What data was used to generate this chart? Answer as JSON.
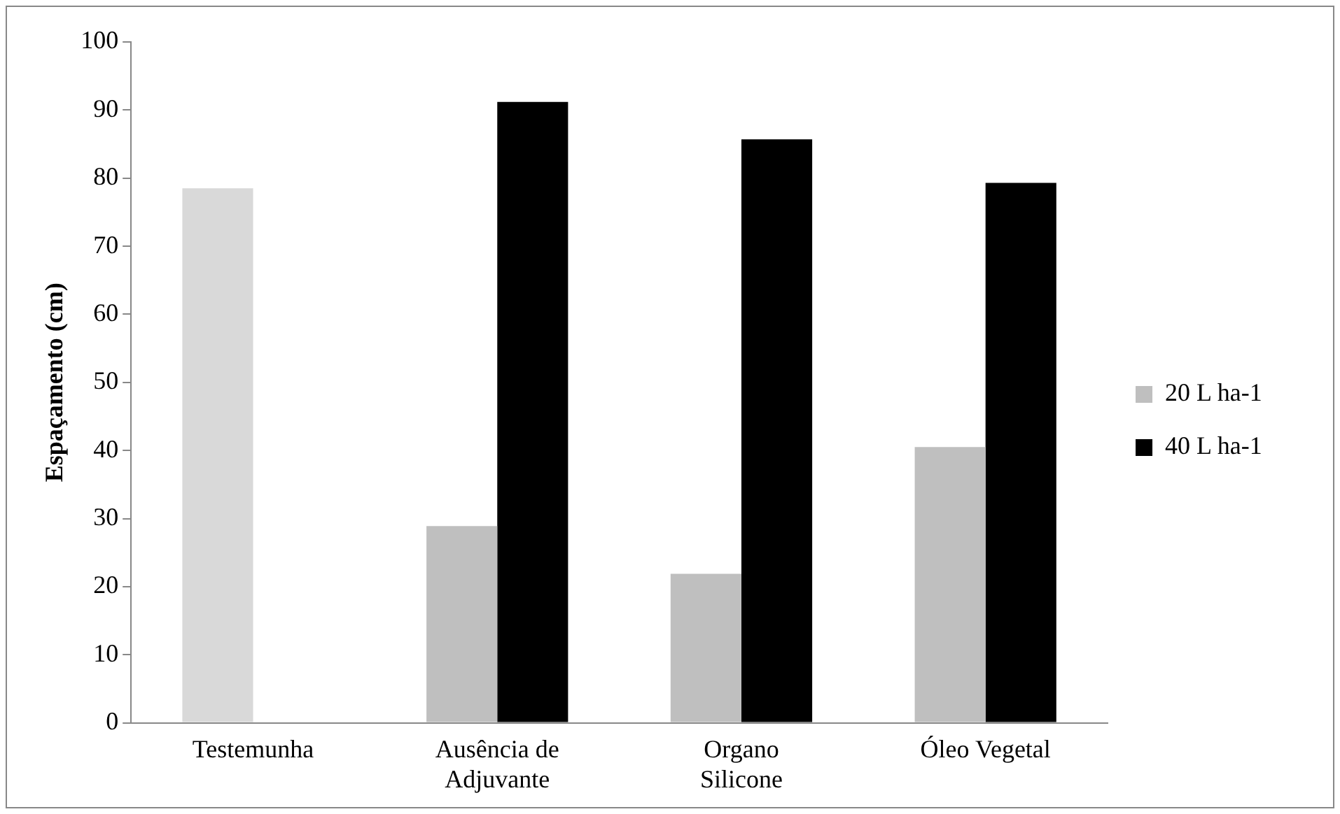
{
  "chart_data": {
    "type": "bar",
    "ylabel": "Espaçamento (cm)",
    "categories": [
      "Testemunha",
      "Ausência de Adjuvante",
      "Organo Silicone",
      "Óleo Vegetal"
    ],
    "series": [
      {
        "name": "20 L ha-1",
        "color": "#bfbfbf",
        "colors": [
          "#d9d9d9",
          "#bfbfbf",
          "#bfbfbf",
          "#bfbfbf"
        ],
        "values": [
          78.5,
          28.9,
          21.9,
          40.5
        ]
      },
      {
        "name": "40 L ha-1",
        "color": "#000000",
        "values": [
          null,
          91.2,
          85.7,
          79.3
        ]
      }
    ],
    "ylim": [
      0,
      100
    ],
    "yticks": [
      0,
      10,
      20,
      30,
      40,
      50,
      60,
      70,
      80,
      90,
      100
    ],
    "grid": false,
    "legend": "right"
  }
}
